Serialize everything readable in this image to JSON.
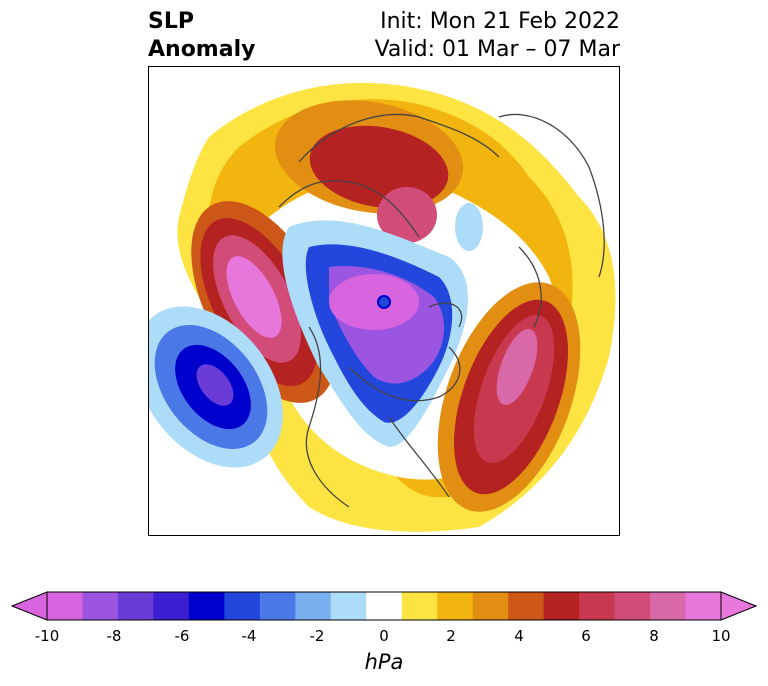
{
  "header": {
    "title_line1": "SLP",
    "title_line2": "Anomaly",
    "init": "Init: Mon 21 Feb 2022",
    "valid": "Valid: 01 Mar – 07 Mar"
  },
  "colorbar": {
    "unit": "hPa",
    "ticks": [
      "-10",
      "-8",
      "-6",
      "-4",
      "-2",
      "0",
      "2",
      "4",
      "6",
      "8",
      "10"
    ],
    "colors": [
      "#d864e0",
      "#9c55e0",
      "#6a3bd6",
      "#3c1fd0",
      "#0000cc",
      "#2346dc",
      "#4a78e6",
      "#79b0f0",
      "#addcf8",
      "#ffffff",
      "#fee442",
      "#f2b50f",
      "#e28e12",
      "#cd5717",
      "#b42222",
      "#c8384e",
      "#d14c78",
      "#d968a8",
      "#e877dc"
    ],
    "min_color": "#d864e0",
    "max_color": "#e877dc"
  }
}
